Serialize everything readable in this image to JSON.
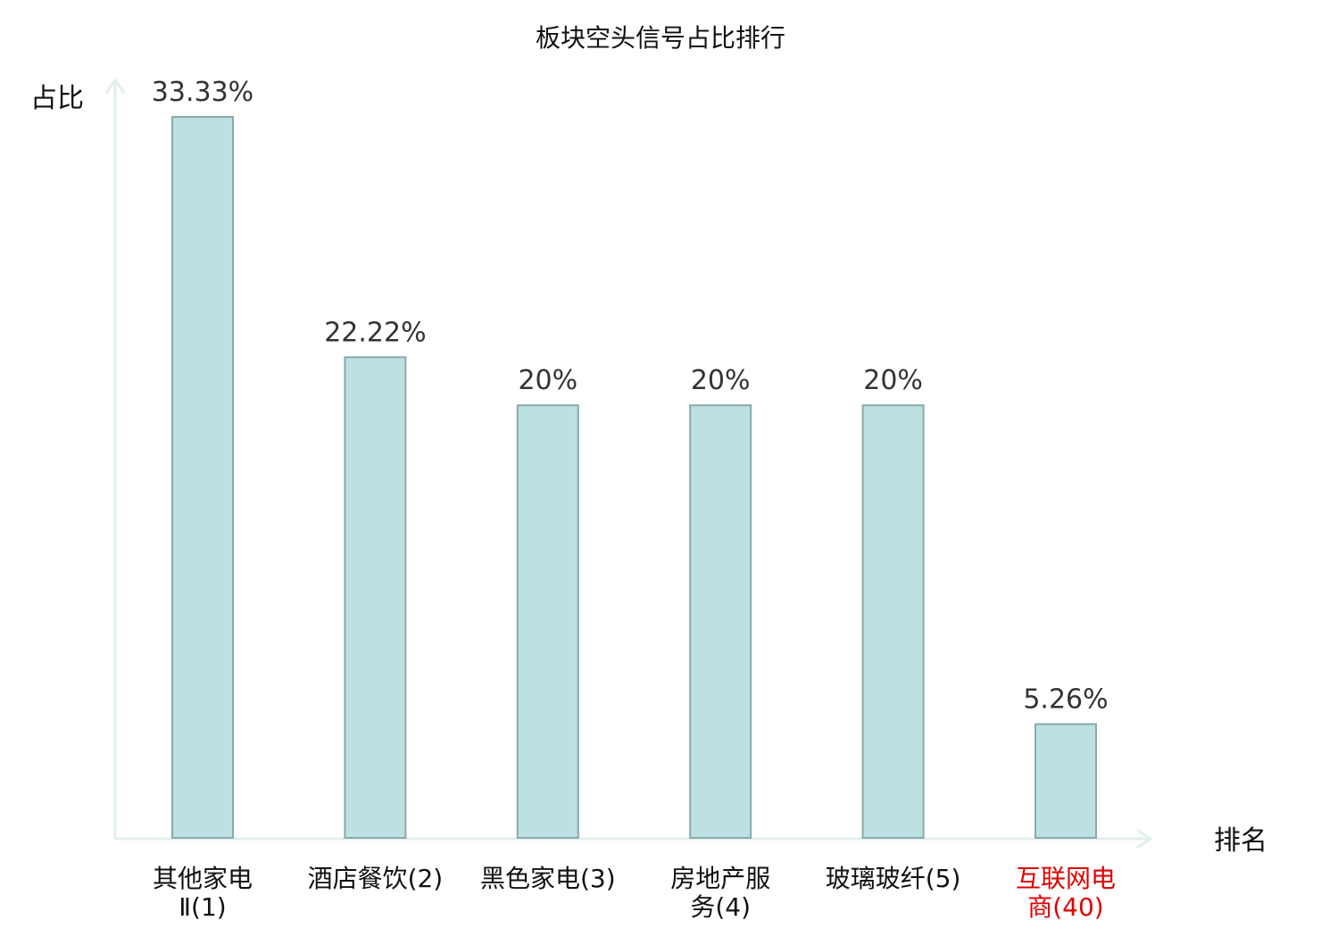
{
  "chart_data": {
    "type": "bar",
    "title": "板块空头信号占比排行",
    "ylabel": "占比",
    "xlabel": "排名",
    "ylim": [
      0,
      35
    ],
    "grid": false,
    "legend": "none",
    "categories": [
      {
        "lines": [
          "其他家电",
          "Ⅱ(1)"
        ],
        "highlight": false
      },
      {
        "lines": [
          "酒店餐饮(2)"
        ],
        "highlight": false
      },
      {
        "lines": [
          "黑色家电(3)"
        ],
        "highlight": false
      },
      {
        "lines": [
          "房地产服",
          "务(4)"
        ],
        "highlight": false
      },
      {
        "lines": [
          "玻璃玻纤(5)"
        ],
        "highlight": false
      },
      {
        "lines": [
          "互联网电",
          "商(40)"
        ],
        "highlight": true
      }
    ],
    "values": [
      33.33,
      22.22,
      20,
      20,
      20,
      5.26
    ],
    "value_labels": [
      "33.33%",
      "22.22%",
      "20%",
      "20%",
      "20%",
      "5.26%"
    ]
  },
  "colors": {
    "bar_fill": "#bde0e3",
    "bar_stroke": "#8aaaaa",
    "axis": "#dff0ee",
    "label": "#111111",
    "value_label": "#333333",
    "highlight": "#e00000"
  }
}
